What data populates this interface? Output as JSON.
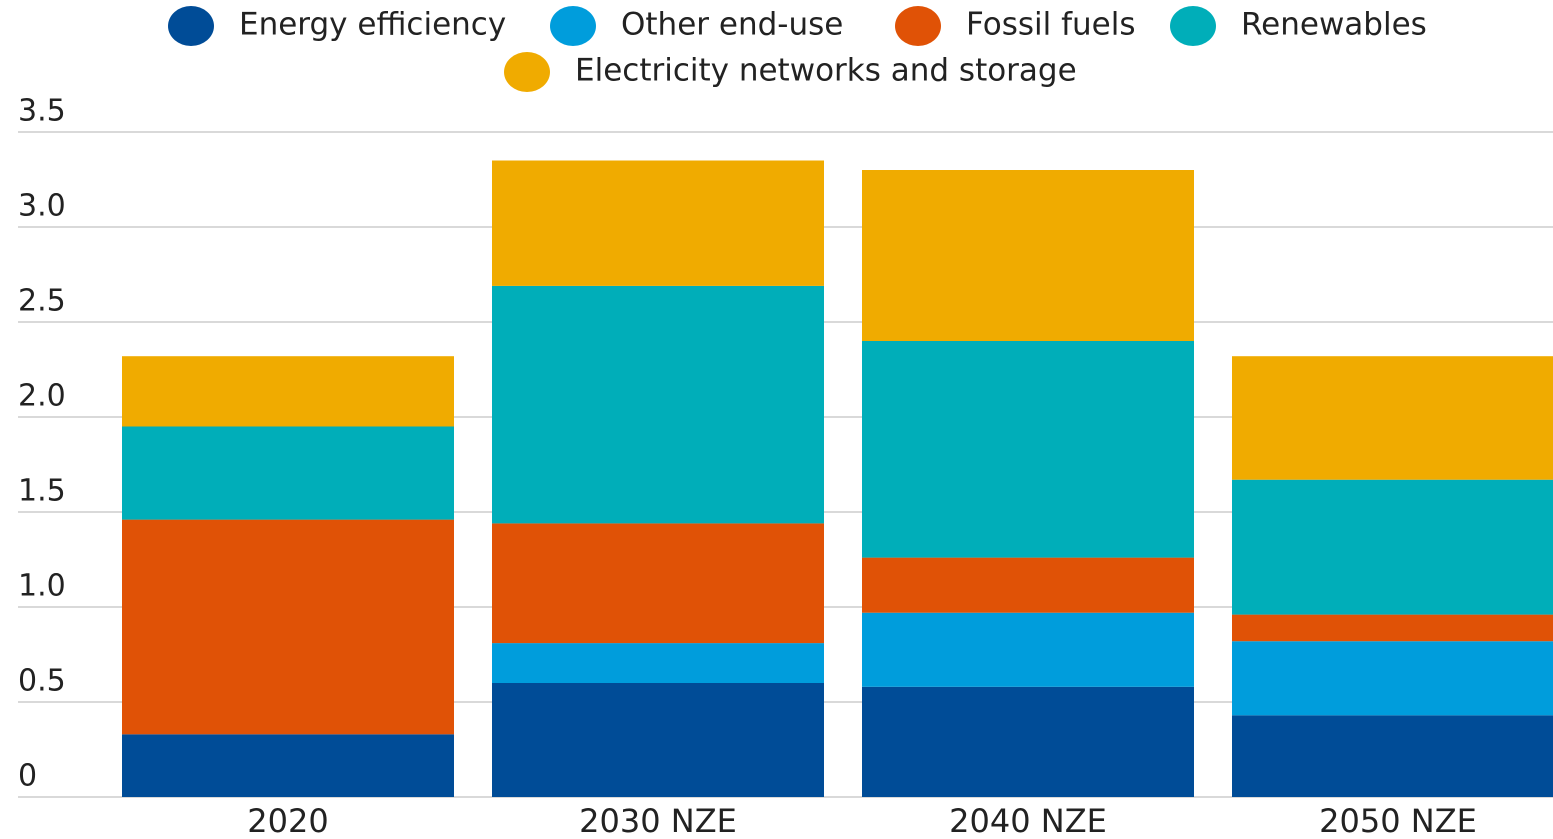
{
  "chart_data": {
    "type": "stacked_bar",
    "categories": [
      "2020",
      "2030 NZE",
      "2040 NZE",
      "2050 NZE"
    ],
    "series": [
      {
        "name": "Energy efficiency",
        "color": "#004c97",
        "values": [
          0.33,
          0.6,
          0.58,
          0.43
        ]
      },
      {
        "name": "Other end-use",
        "color": "#009ddc",
        "values": [
          0,
          0.21,
          0.39,
          0.39
        ]
      },
      {
        "name": "Fossil fuels",
        "color": "#e05206",
        "values": [
          1.13,
          0.63,
          0.29,
          0.14
        ]
      },
      {
        "name": "Renewables",
        "color": "#00aeb9",
        "values": [
          0.49,
          1.25,
          1.14,
          0.71
        ]
      },
      {
        "name": "Electricity networks and storage",
        "color": "#f0ab00",
        "values": [
          0.37,
          0.66,
          0.9,
          0.65
        ]
      }
    ],
    "ylim": [
      0,
      3.5
    ],
    "yticks": [
      0,
      0.5,
      {
        "value": 1,
        "label": "1.0"
      },
      1.5,
      {
        "value": 2,
        "label": "2.0"
      },
      2.5,
      {
        "value": 3,
        "label": "3.0"
      },
      3.5
    ],
    "grid": true,
    "legend": "top"
  }
}
